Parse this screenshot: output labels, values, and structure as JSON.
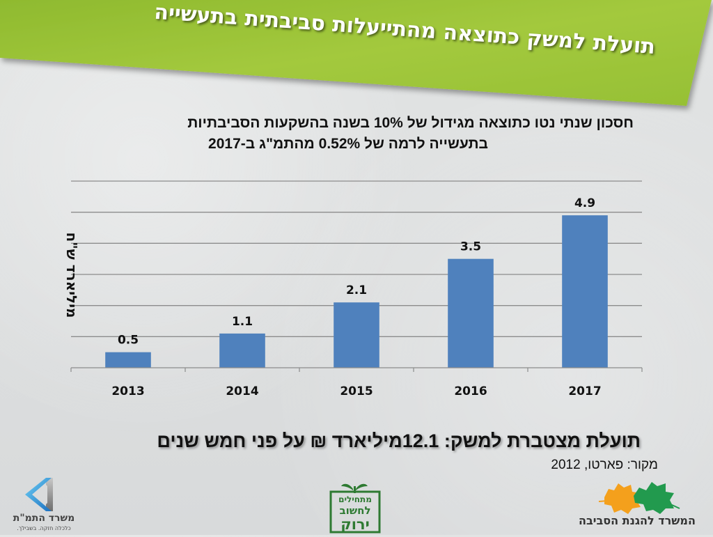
{
  "slide": {
    "banner_title_line1": "תועלת למשק כתוצאה מהתייעלות סביבתית בתעשייה",
    "banner_title_line2": "",
    "banner_color": "#9bc23a",
    "chart_title_line1": "חסכון שנתי נטו כתוצאה מגידול של 10% בשנה בהשקעות הסביבתיות",
    "chart_title_line2": "בתעשייה לרמה של 0.52% מהתמ\"ג ב-2017",
    "summary": "תועלת מצטברת למשק: 12.1מיליארד ₪ על פני חמש שנים",
    "source": "מקור: פארטו, 2012"
  },
  "logos": {
    "tamat_name": "משרד התמ\"ת",
    "tamat_tagline": "כלכלה חזקה. בשבילך.",
    "green_slogan": "מתחילים לחשוב ירוק",
    "env_ministry": "המשרד להגנת הסביבה"
  },
  "chart_data": {
    "type": "bar",
    "title": "חסכון שנתי נטו כתוצאה מגידול של 10% בשנה בהשקעות הסביבתיות בתעשייה לרמה של 0.52% מהתמ\"ג ב-2017",
    "categories": [
      "2013",
      "2014",
      "2015",
      "2016",
      "2017"
    ],
    "values": [
      0.5,
      1.1,
      2.1,
      3.5,
      4.9
    ],
    "data_labels": [
      "0.5",
      "1.1",
      "2.1",
      "3.5",
      "4.9"
    ],
    "xlabel": "",
    "ylabel": "מיליארד ש\"ח",
    "ylim": [
      0,
      6
    ],
    "ytick_step": 1,
    "ytick_labels_visible": false,
    "grid": true,
    "legend": "none",
    "bar_color": "#4f81bd"
  }
}
